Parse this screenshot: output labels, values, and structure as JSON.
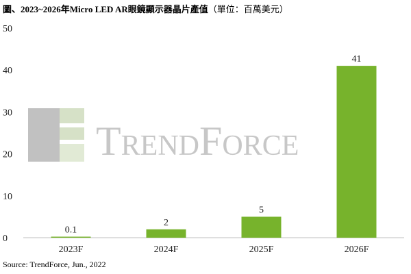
{
  "title": "圖、2023~2026年Micro LED AR眼鏡顯示器晶片產值",
  "title_unit": "（單位：百萬美元）",
  "watermark": "TrendForce",
  "source": "Source: TrendForce, Jun., 2022",
  "colors": {
    "bar": "#77b32c",
    "grid": "#d9d9d9",
    "axis": "#bfbfbf"
  },
  "chart_data": {
    "type": "bar",
    "categories": [
      "2023F",
      "2024F",
      "2025F",
      "2026F"
    ],
    "values": [
      0.1,
      2,
      5,
      41
    ],
    "data_labels": [
      "0.1",
      "2",
      "5",
      "41"
    ],
    "yticks": [
      0,
      10,
      20,
      30,
      40,
      50
    ],
    "ylim": [
      0,
      50
    ],
    "grid": false,
    "legend": "none"
  }
}
